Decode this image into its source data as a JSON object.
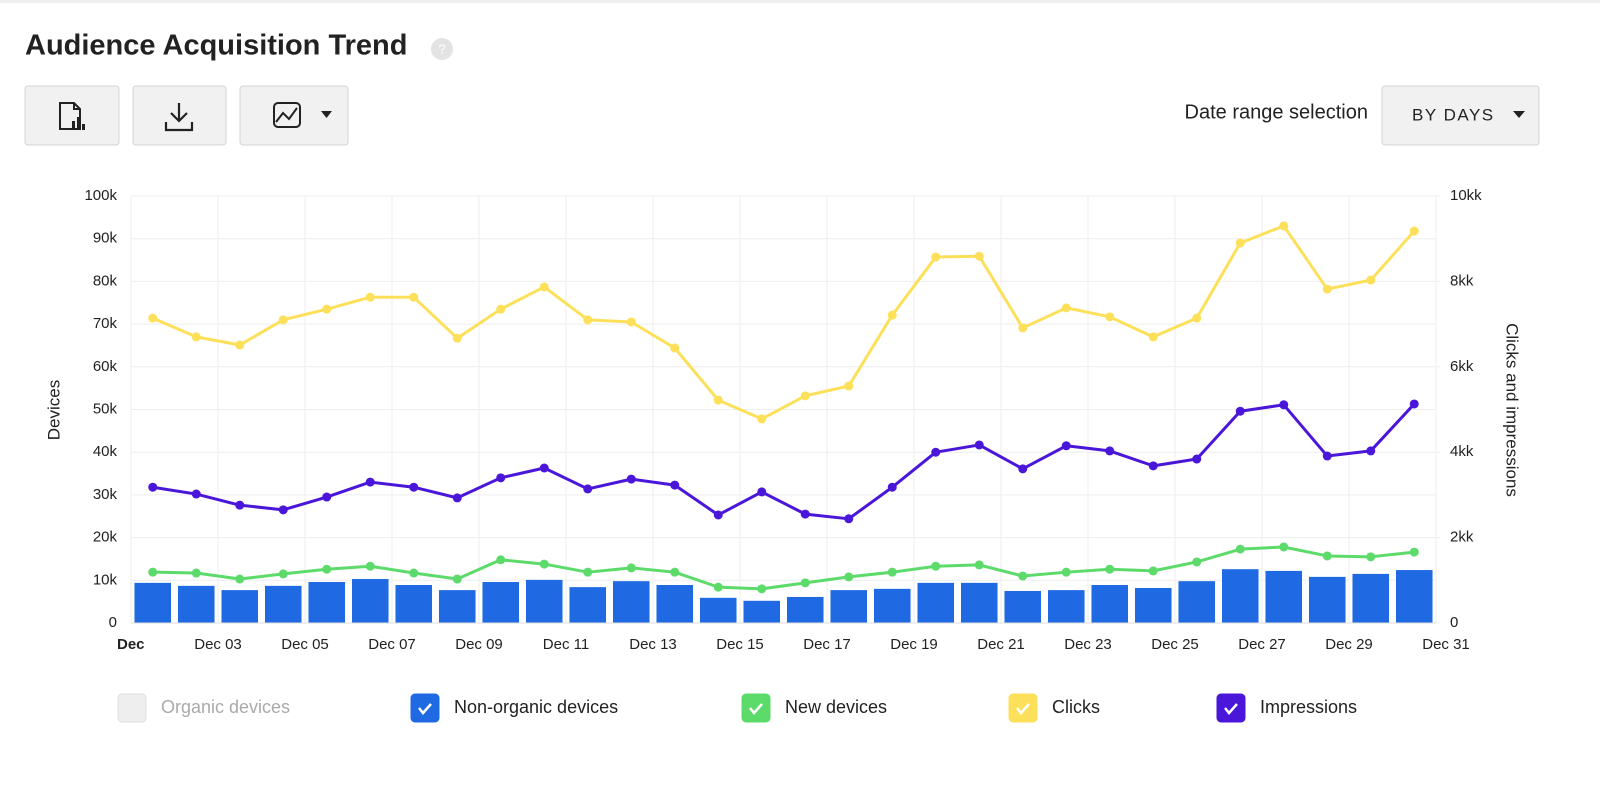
{
  "header": {
    "title": "Audience Acquisition Trend",
    "help": "?"
  },
  "toolbar": {
    "date_range_label": "Date range selection",
    "date_range_value": "BY DAYS"
  },
  "chart_data": {
    "type": "bar",
    "ylabel": "Devices",
    "y2label": "Clicks and impressions",
    "x": [
      1,
      2,
      3,
      4,
      5,
      6,
      7,
      8,
      9,
      10,
      11,
      12,
      13,
      14,
      15,
      16,
      17,
      18,
      19,
      20,
      21,
      22,
      23,
      24,
      25,
      26,
      27,
      28,
      29,
      30
    ],
    "xlim": [
      1,
      31
    ],
    "xticks": [
      {
        "value": 1,
        "label": "Dec"
      },
      {
        "value": 3,
        "label": "Dec 03"
      },
      {
        "value": 5,
        "label": "Dec 05"
      },
      {
        "value": 7,
        "label": "Dec 07"
      },
      {
        "value": 9,
        "label": "Dec 09"
      },
      {
        "value": 11,
        "label": "Dec 11"
      },
      {
        "value": 13,
        "label": "Dec 13"
      },
      {
        "value": 15,
        "label": "Dec 15"
      },
      {
        "value": 17,
        "label": "Dec 17"
      },
      {
        "value": 19,
        "label": "Dec 19"
      },
      {
        "value": 21,
        "label": "Dec 21"
      },
      {
        "value": 23,
        "label": "Dec 23"
      },
      {
        "value": 25,
        "label": "Dec 25"
      },
      {
        "value": 27,
        "label": "Dec 27"
      },
      {
        "value": 29,
        "label": "Dec 29"
      },
      {
        "value": 31,
        "label": "Dec 31"
      }
    ],
    "ylim": [
      0,
      100000
    ],
    "yticks": [
      0,
      {
        "value": 10000,
        "label": "10k"
      },
      {
        "value": 20000,
        "label": "20k"
      },
      {
        "value": 30000,
        "label": "30k"
      },
      {
        "value": 40000,
        "label": "40k"
      },
      {
        "value": 50000,
        "label": "50k"
      },
      {
        "value": 60000,
        "label": "60k"
      },
      {
        "value": 70000,
        "label": "70k"
      },
      {
        "value": 80000,
        "label": "80k"
      },
      {
        "value": 90000,
        "label": "90k"
      },
      {
        "value": 100000,
        "label": "100k"
      }
    ],
    "y2lim": [
      0,
      10000000
    ],
    "y2ticks": [
      0,
      {
        "value": 2000000,
        "label": "2kk"
      },
      {
        "value": 4000000,
        "label": "4kk"
      },
      {
        "value": 6000000,
        "label": "6kk"
      },
      {
        "value": 8000000,
        "label": "8kk"
      },
      {
        "value": 10000000,
        "label": "10kk"
      }
    ],
    "grid": true,
    "series": [
      {
        "name": "Organic devices",
        "color": "#eeeeee",
        "checked": false
      },
      {
        "name": "Non-organic devices",
        "color": "#1f6ae3",
        "checked": true,
        "type": "bar",
        "values": [
          9400,
          8700,
          7700,
          8700,
          9600,
          10300,
          8900,
          7700,
          9600,
          10100,
          8400,
          9800,
          8900,
          5900,
          5200,
          6100,
          7700,
          8000,
          9400,
          9400,
          7500,
          7700,
          8900,
          8200,
          9800,
          12600,
          12200,
          10800,
          11500,
          12400
        ]
      },
      {
        "name": "New devices",
        "color": "#5cdb6b",
        "checked": true,
        "type": "line",
        "values": [
          11900,
          11700,
          10300,
          11500,
          12600,
          13300,
          11700,
          10300,
          14800,
          13800,
          11900,
          12900,
          11900,
          8400,
          8000,
          9400,
          10800,
          11900,
          13300,
          13600,
          11000,
          11900,
          12600,
          12200,
          14300,
          17300,
          17800,
          15700,
          15500,
          16600
        ]
      },
      {
        "name": "Clicks",
        "color": "#fde05a",
        "checked": true,
        "type": "line",
        "axis": "y2",
        "values": [
          7140000,
          6700000,
          6510000,
          7100000,
          7350000,
          7630000,
          7630000,
          6670000,
          7350000,
          7870000,
          7100000,
          7050000,
          6440000,
          5220000,
          4780000,
          5320000,
          5550000,
          7210000,
          8570000,
          8590000,
          6910000,
          7380000,
          7170000,
          6700000,
          7140000,
          8900000,
          9300000,
          7820000,
          8030000,
          9180000
        ]
      },
      {
        "name": "Impressions",
        "color": "#4a16d9",
        "checked": true,
        "type": "line",
        "axis": "y2",
        "values": [
          3180000,
          3020000,
          2760000,
          2650000,
          2950000,
          3300000,
          3180000,
          2930000,
          3400000,
          3630000,
          3140000,
          3370000,
          3230000,
          2530000,
          3070000,
          2550000,
          2440000,
          3180000,
          4000000,
          4170000,
          3610000,
          4150000,
          4030000,
          3680000,
          3840000,
          4960000,
          5110000,
          3910000,
          4030000,
          5130000
        ]
      }
    ]
  }
}
